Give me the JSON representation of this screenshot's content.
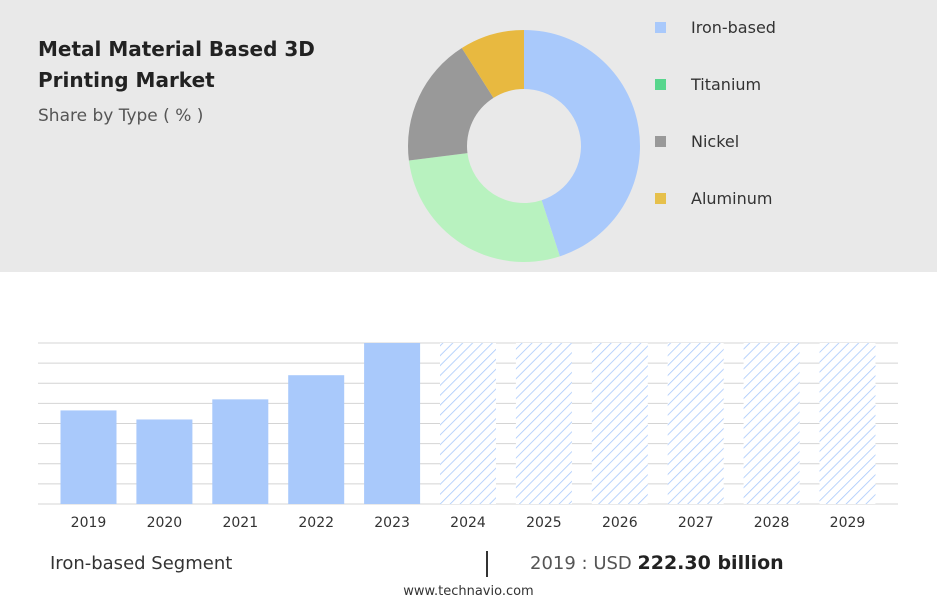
{
  "header": {
    "title": "Metal Material Based 3D Printing Market",
    "subtitle": "Share by Type ( % )"
  },
  "legend": [
    {
      "label": "Iron-based",
      "color": "#a9c9fb"
    },
    {
      "label": "Titanium",
      "color": "#58d68d"
    },
    {
      "label": "Nickel",
      "color": "#999999"
    },
    {
      "label": "Aluminum",
      "color": "#e6c04b"
    }
  ],
  "chart_data": [
    {
      "type": "pie",
      "donut": true,
      "categories": [
        "Iron-based",
        "Titanium",
        "Nickel",
        "Aluminum"
      ],
      "values": [
        45,
        28,
        18,
        9
      ],
      "colors": [
        "#a9c9fb",
        "#b8f2bf",
        "#999999",
        "#e8b940"
      ]
    },
    {
      "type": "bar",
      "categories": [
        "2019",
        "2020",
        "2021",
        "2022",
        "2023",
        "2024",
        "2025",
        "2026",
        "2027",
        "2028",
        "2029"
      ],
      "values": [
        46.5,
        42,
        52,
        64,
        80,
        null,
        null,
        null,
        null,
        null,
        null
      ],
      "forecast_years": [
        "2024",
        "2025",
        "2026",
        "2027",
        "2028",
        "2029"
      ],
      "ylim": [
        0,
        80
      ],
      "grid": true,
      "color": "#a9c9fb"
    }
  ],
  "footer": {
    "segment_label": "Iron-based Segment",
    "value_prefix": "2019 : USD",
    "value_bold": "222.30 billion",
    "website": "www.technavio.com"
  }
}
